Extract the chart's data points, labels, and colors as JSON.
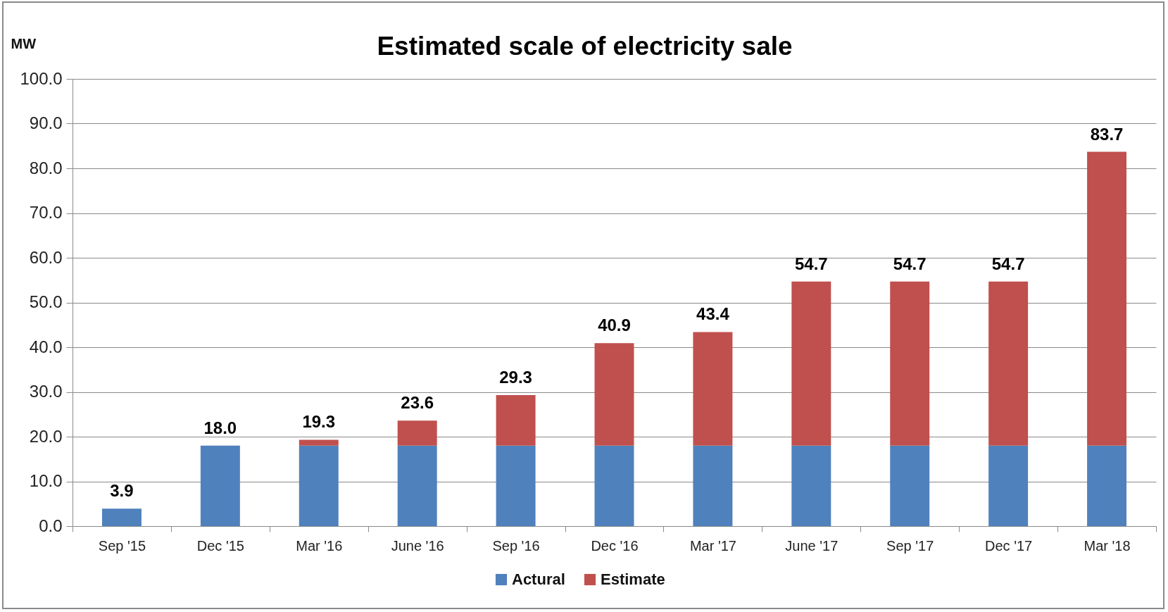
{
  "chart_data": {
    "type": "bar",
    "title": "Estimated scale of electricity sale",
    "ylabel": "MW",
    "categories": [
      "Sep '15",
      "Dec '15",
      "Mar '16",
      "June '16",
      "Sep '16",
      "Dec '16",
      "Mar '17",
      "June '17",
      "Sep '17",
      "Dec '17",
      "Mar '18"
    ],
    "series": [
      {
        "name": "Actural",
        "color": "#4f81bd",
        "values": [
          3.9,
          18.0,
          18.0,
          18.0,
          18.0,
          18.0,
          18.0,
          18.0,
          18.0,
          18.0,
          18.0
        ]
      },
      {
        "name": "Estimate",
        "color": "#c0504d",
        "values": [
          null,
          null,
          1.3,
          5.6,
          11.3,
          22.9,
          25.4,
          36.7,
          36.7,
          36.7,
          65.7
        ]
      }
    ],
    "stacked": true,
    "totals": [
      "3.9",
      "18.0",
      "19.3",
      "23.6",
      "29.3",
      "40.9",
      "43.4",
      "54.7",
      "54.7",
      "54.7",
      "83.7"
    ],
    "ylim": [
      0,
      100
    ],
    "yticks": [
      {
        "value": 0,
        "label": "0.0"
      },
      {
        "value": 10,
        "label": "10.0"
      },
      {
        "value": 20,
        "label": "20.0"
      },
      {
        "value": 30,
        "label": "30.0"
      },
      {
        "value": 40,
        "label": "40.0"
      },
      {
        "value": 50,
        "label": "50.0"
      },
      {
        "value": 60,
        "label": "60.0"
      },
      {
        "value": 70,
        "label": "70.0"
      },
      {
        "value": 80,
        "label": "80.0"
      },
      {
        "value": 90,
        "label": "90.0"
      },
      {
        "value": 100,
        "label": "100.0"
      }
    ],
    "grid": "y",
    "legend": "bottom"
  }
}
